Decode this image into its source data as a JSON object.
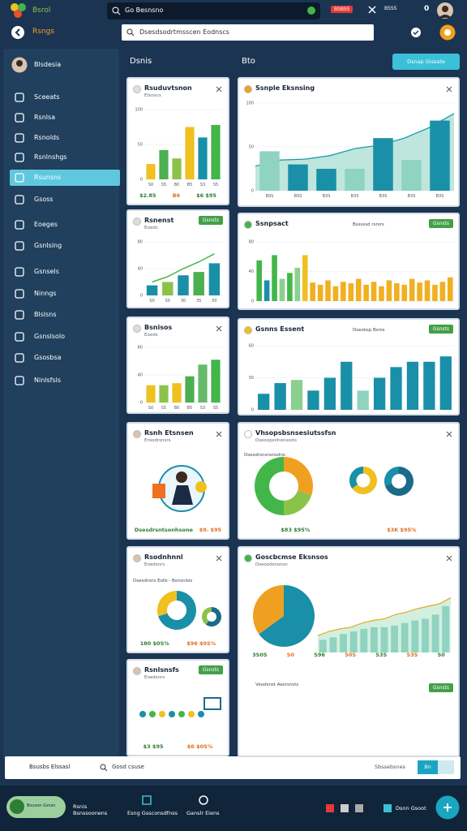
{
  "header": {
    "app_name": "Bsrol",
    "search": "Go Besnsno",
    "badge": "BSBSS",
    "stat": "BSSS",
    "count": "0"
  },
  "toolbar": {
    "title": "Rsngs",
    "search": "Dsesdsodrtmsscen Eodnscs"
  },
  "sidebar": {
    "user": "Blsdesia",
    "active": 4,
    "items": [
      "Sceeats",
      "Rsnlsa",
      "Rsnolds",
      "Rsnlnshgs",
      "Rsunsns",
      "Gsoss",
      "Eoeges",
      "Gsnlsing",
      "Gsnsels",
      "Ninngs",
      "Blslsns",
      "Gsnslsolo",
      "Gsosbsa",
      "Ninlsfsls"
    ]
  },
  "main": {
    "left_title": "Dsnis",
    "right_title": "Bto",
    "action": "Dsnap Gissate"
  },
  "cards": [
    {
      "title": "Rsuduvtsnon",
      "subtitle": "Etsnscs",
      "footer": [
        "$2.85",
        "B6",
        "$6 $95"
      ],
      "charts": [
        {
          "type": "bar",
          "values": [
            22,
            42,
            30,
            75,
            60,
            78
          ],
          "colors": [
            "#f0c020",
            "#4caf50",
            "#8bc34a",
            "#f0c020",
            "#1a8fa8",
            "#43b649"
          ],
          "ylim": [
            0,
            100
          ],
          "yticks": [
            0,
            50,
            100
          ],
          "categories": [
            "S0",
            "S5",
            "B0",
            "B5",
            "S3",
            "S5"
          ]
        }
      ]
    },
    {
      "title": "Rsnenst",
      "subtitle": "Eoeds",
      "button": "Gsnsts",
      "charts": [
        {
          "type": "bar",
          "values": [
            15,
            20,
            30,
            35,
            48
          ],
          "colors": [
            "#1a8fa8",
            "#8bc34a",
            "#1a8fa8",
            "#4caf50",
            "#1a8fa8"
          ],
          "line": [
            20,
            28,
            40,
            50,
            62
          ],
          "line_color": "#43b649",
          "ylim": [
            0,
            80
          ],
          "yticks": [
            0,
            40,
            80
          ],
          "categories": [
            "S0",
            "S5",
            "30",
            "35",
            "50"
          ]
        }
      ]
    },
    {
      "title": "Bsnisos",
      "subtitle": "Eoeds",
      "charts": [
        {
          "type": "bar",
          "values": [
            25,
            25,
            28,
            38,
            55,
            62
          ],
          "colors": [
            "#f0c020",
            "#8bc34a",
            "#f0c020",
            "#4caf50",
            "#66bb6a",
            "#43b649"
          ],
          "ylim": [
            0,
            80
          ],
          "yticks": [
            0,
            40,
            80
          ],
          "categories": [
            "S0",
            "S5",
            "B0",
            "B5",
            "S3",
            "S5"
          ]
        }
      ]
    },
    {
      "title": "Rsnh Etsnsen",
      "subtitle": "Eroodrsnsrs",
      "footer": [
        "Dsesdrsntsonhsone",
        "$9. $95"
      ],
      "charts": []
    },
    {
      "title": "Rsodnhnnl",
      "subtitle": "Eoedsnrs",
      "legend": "Dsesdrsns Eotb - Bsnsnlsls",
      "footer": [
        "180 $0S%",
        "$96 $0S%"
      ],
      "charts": [
        {
          "type": "donut",
          "values": [
            70,
            30
          ],
          "colors": [
            "#1a8fa8",
            "#f0c020"
          ]
        },
        {
          "type": "donut",
          "values": [
            60,
            40
          ],
          "colors": [
            "#1a6b8a",
            "#8bc34a"
          ]
        }
      ]
    },
    {
      "title": "Rsnlsnsfs",
      "subtitle": "Eoedsnrs",
      "button": "Gsnsts",
      "footer": [
        "$3 $95",
        "$6 $0S%"
      ],
      "charts": []
    },
    {
      "title": "Ssnple Eksnsing",
      "charts": [
        {
          "type": "bar",
          "values": [
            45,
            30,
            25,
            25,
            60,
            35,
            80
          ],
          "colors": [
            "#8fd3c0",
            "#1a8fa8",
            "#1a8fa8",
            "#8fd3c0",
            "#1a8fa8",
            "#8fd3c0",
            "#1a8fa8"
          ],
          "area": [
            28,
            35,
            36,
            40,
            48,
            52,
            60,
            72,
            88
          ],
          "area_color": "#bfe6dc",
          "line_color": "#1a9fb0",
          "ylim": [
            0,
            100
          ],
          "yticks": [
            0,
            50,
            100
          ],
          "categories": [
            "BSS",
            "BSS",
            "B3S",
            "B3S",
            "B3S",
            "B3S",
            "B3S"
          ]
        }
      ]
    },
    {
      "title": "Ssnpsact",
      "legend": "Bsssssd rsrsrs",
      "button": "Gsnsts",
      "charts": [
        {
          "type": "bar",
          "values": [
            55,
            28,
            62,
            30,
            38,
            45,
            62,
            25,
            22,
            28,
            20,
            26,
            24,
            30,
            22,
            26,
            20,
            28,
            24,
            22,
            30,
            25,
            28,
            22,
            26,
            32
          ],
          "colors": [
            "#43b649",
            "#1a8fa8",
            "#43b649",
            "#8bd08f",
            "#43b649",
            "#8bd08f",
            "#f0c020",
            "#f0b020",
            "#f0b020",
            "#f0b020",
            "#f0b020",
            "#f0b020",
            "#f0b020",
            "#f0b020",
            "#f0b020",
            "#f0b020",
            "#f0b020",
            "#f0b020",
            "#f0b020",
            "#f0b020",
            "#f0b020",
            "#f0b020",
            "#f0b020",
            "#f0b020",
            "#f0b020",
            "#f0b020"
          ],
          "ylim": [
            0,
            80
          ],
          "yticks": [
            0,
            40,
            80
          ]
        }
      ]
    },
    {
      "title": "Gsnns Essent",
      "legend": "Dsesbsp Bsnis",
      "button": "Gsnsts",
      "charts": [
        {
          "type": "bar",
          "values": [
            15,
            25,
            28,
            18,
            30,
            45,
            18,
            30,
            40,
            45,
            45,
            50
          ],
          "colors": [
            "#1a8fa8",
            "#1a8fa8",
            "#8bd08f",
            "#1a8fa8",
            "#1a8fa8",
            "#1a8fa8",
            "#8fd3c0",
            "#1a8fa8",
            "#1a8fa8",
            "#1a8fa8",
            "#1a8fa8",
            "#1a8fa8"
          ],
          "ylim": [
            0,
            60
          ],
          "yticks": [
            0,
            30,
            60
          ]
        }
      ]
    },
    {
      "title": "Vhsopsbsnsesiutssfsn",
      "subtitle": "Dseoopsnhensssts",
      "legend": "Dsesdrsnsnsnsdns",
      "footer": [
        "$83 $95%",
        "$3K $95%"
      ],
      "charts": [
        {
          "type": "donut",
          "values": [
            30,
            20,
            50
          ],
          "colors": [
            "#f0a020",
            "#8bc34a",
            "#43b649"
          ]
        },
        {
          "type": "donut",
          "values": [
            65,
            35
          ],
          "colors": [
            "#f0c020",
            "#1a8fa8"
          ]
        },
        {
          "type": "donut",
          "values": [
            70,
            30
          ],
          "colors": [
            "#1a6b8a",
            "#1a8fa8"
          ]
        }
      ]
    },
    {
      "title": "Goscbcmse Eksnsos",
      "subtitle": "Dseoodsnsnsn",
      "legend": "Veodsnst Aesrsnsts",
      "button": "Gsnsts",
      "footer": [
        "3S0S",
        "S0",
        "S96",
        "S0S",
        "S3S",
        "S3S",
        "S0"
      ],
      "charts": [
        {
          "type": "pie",
          "values": [
            65,
            35
          ],
          "colors": [
            "#1a8fa8",
            "#f0a020"
          ]
        },
        {
          "type": "bar",
          "values": [
            15,
            18,
            22,
            25,
            28,
            30,
            30,
            32,
            35,
            38,
            40,
            45,
            55
          ],
          "colors": [
            "#8fd3c0"
          ],
          "area": [
            20,
            25,
            28,
            30,
            35,
            38,
            40,
            45,
            48,
            52,
            55,
            58,
            65
          ],
          "area_color": "#d3efe0",
          "line_color": "#e0b030",
          "ylim": [
            0,
            80
          ]
        }
      ]
    }
  ],
  "search_bar": {
    "label": "Bsusbs Elssasl",
    "query": "Gosd csuse",
    "status": "Sbssebsnes",
    "button": "Bn"
  },
  "nav": {
    "profile": "Bsuvon Gsnsn",
    "items": [
      "Rsnis Bsnssoonens",
      "Esng Gssconsdfnss",
      "Ganslr Eiens",
      "Dsnn Gsoot"
    ]
  }
}
